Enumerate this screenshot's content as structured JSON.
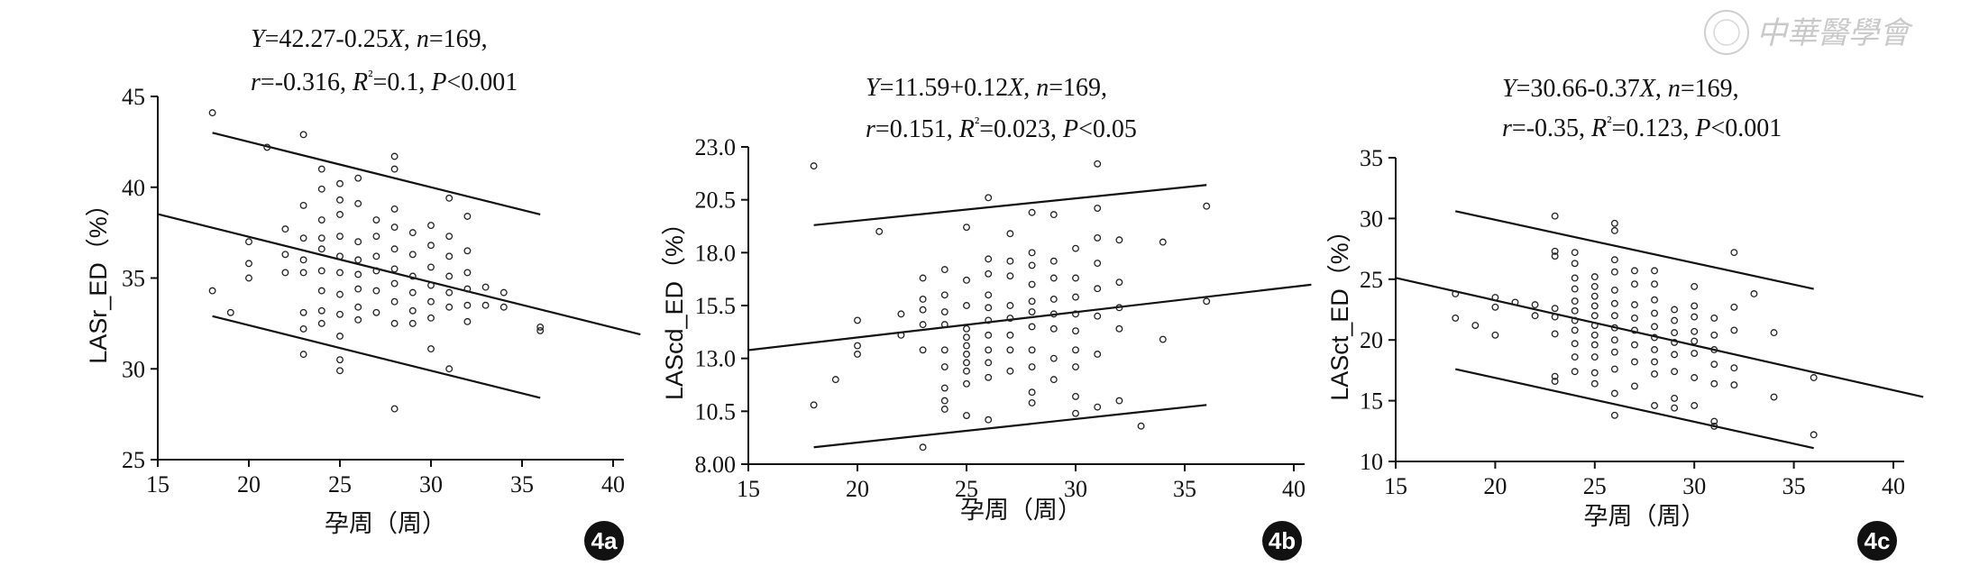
{
  "watermark": {
    "text": "中華醫學會"
  },
  "chart_data": [
    {
      "type": "scatter",
      "panel_label": "4a",
      "equation_line1": [
        "Y",
        "=42.27-0.25",
        "X",
        ", ",
        "n",
        "=169,"
      ],
      "equation_line2": [
        "r",
        "=-0.316, ",
        "R",
        "²",
        "=0.1, ",
        "P",
        "<0.001"
      ],
      "xlabel": "孕周（周）",
      "ylabel": "LASr_ED（%）",
      "xlim": [
        15,
        40
      ],
      "ylim": [
        25,
        45
      ],
      "xticks": [
        "15",
        "20",
        "25",
        "30",
        "35",
        "40"
      ],
      "yticks": [
        "25",
        "30",
        "35",
        "40",
        "45"
      ],
      "regression": {
        "intercept": 42.27,
        "slope": -0.25,
        "x_range": [
          15,
          41.5
        ]
      },
      "bands": [
        {
          "x_range": [
            18,
            36
          ],
          "y_start": 43.0,
          "y_end": 38.5
        },
        {
          "x_range": [
            18,
            36
          ],
          "y_start": 32.9,
          "y_end": 28.4
        }
      ],
      "points": [
        [
          18,
          44.1
        ],
        [
          18,
          34.3
        ],
        [
          19,
          33.1
        ],
        [
          20,
          37
        ],
        [
          20,
          35.8
        ],
        [
          20,
          35
        ],
        [
          21,
          42.2
        ],
        [
          22,
          37.7
        ],
        [
          22,
          36.3
        ],
        [
          22,
          35.3
        ],
        [
          23,
          42.9
        ],
        [
          23,
          39
        ],
        [
          23,
          37.2
        ],
        [
          23,
          36
        ],
        [
          23,
          35.3
        ],
        [
          23,
          33.1
        ],
        [
          23,
          32.2
        ],
        [
          23,
          30.8
        ],
        [
          24,
          41
        ],
        [
          24,
          39.9
        ],
        [
          24,
          38.2
        ],
        [
          24,
          37.2
        ],
        [
          24,
          36.6
        ],
        [
          24,
          35.4
        ],
        [
          24,
          34.3
        ],
        [
          24,
          33.2
        ],
        [
          24,
          32.5
        ],
        [
          25,
          40.2
        ],
        [
          25,
          39.3
        ],
        [
          25,
          38.5
        ],
        [
          25,
          37.3
        ],
        [
          25,
          36.2
        ],
        [
          25,
          35.3
        ],
        [
          25,
          34.1
        ],
        [
          25,
          33
        ],
        [
          25,
          31.8
        ],
        [
          25,
          30.5
        ],
        [
          25,
          29.9
        ],
        [
          26,
          40.5
        ],
        [
          26,
          39.1
        ],
        [
          26,
          37
        ],
        [
          26,
          36
        ],
        [
          26,
          35.2
        ],
        [
          26,
          34.4
        ],
        [
          26,
          33.4
        ],
        [
          26,
          32.7
        ],
        [
          27,
          38.2
        ],
        [
          27,
          37.3
        ],
        [
          27,
          36.2
        ],
        [
          27,
          35.4
        ],
        [
          27,
          34.3
        ],
        [
          27,
          33.1
        ],
        [
          28,
          41.7
        ],
        [
          28,
          41
        ],
        [
          28,
          38.8
        ],
        [
          28,
          37.8
        ],
        [
          28,
          36.6
        ],
        [
          28,
          35.5
        ],
        [
          28,
          34.7
        ],
        [
          28,
          33.7
        ],
        [
          28,
          32.5
        ],
        [
          28,
          27.8
        ],
        [
          29,
          37.5
        ],
        [
          29,
          36.3
        ],
        [
          29,
          35.1
        ],
        [
          29,
          34.2
        ],
        [
          29,
          33.2
        ],
        [
          29,
          32.5
        ],
        [
          30,
          37.9
        ],
        [
          30,
          36.8
        ],
        [
          30,
          35.6
        ],
        [
          30,
          34.6
        ],
        [
          30,
          33.7
        ],
        [
          30,
          32.8
        ],
        [
          30,
          31.1
        ],
        [
          31,
          39.4
        ],
        [
          31,
          37.3
        ],
        [
          31,
          36.2
        ],
        [
          31,
          35.1
        ],
        [
          31,
          34.2
        ],
        [
          31,
          33.4
        ],
        [
          31,
          30
        ],
        [
          32,
          38.4
        ],
        [
          32,
          36.5
        ],
        [
          32,
          35.3
        ],
        [
          32,
          34.4
        ],
        [
          32,
          33.5
        ],
        [
          32,
          32.6
        ],
        [
          33,
          34.5
        ],
        [
          33,
          33.5
        ],
        [
          34,
          34.2
        ],
        [
          34,
          33.4
        ],
        [
          36,
          32.3
        ],
        [
          36,
          32.1
        ]
      ]
    },
    {
      "type": "scatter",
      "panel_label": "4b",
      "equation_line1": [
        "Y",
        "=11.59+0.12",
        "X",
        ", ",
        "n",
        "=169,"
      ],
      "equation_line2": [
        "r",
        "=0.151, ",
        "R",
        "²",
        "=0.023, ",
        "P",
        "<0.05"
      ],
      "xlabel": "孕周（周）",
      "ylabel": "LAScd_ED（%）",
      "xlim": [
        15,
        40
      ],
      "ylim": [
        8,
        23
      ],
      "xticks": [
        "15",
        "20",
        "25",
        "30",
        "35",
        "40"
      ],
      "yticks": [
        "8.00",
        "10.5",
        "13.0",
        "15.5",
        "18.0",
        "20.5",
        "23.0"
      ],
      "regression": {
        "intercept": 11.59,
        "slope": 0.12,
        "x_range": [
          15,
          40.8
        ]
      },
      "bands": [
        {
          "x_range": [
            18,
            36
          ],
          "y_start": 19.3,
          "y_end": 21.2
        },
        {
          "x_range": [
            18,
            36
          ],
          "y_start": 8.8,
          "y_end": 10.8
        }
      ],
      "points": [
        [
          18,
          22.1
        ],
        [
          18,
          10.8
        ],
        [
          19,
          12
        ],
        [
          20,
          14.8
        ],
        [
          20,
          13.6
        ],
        [
          20,
          13.2
        ],
        [
          21,
          19
        ],
        [
          22,
          15.1
        ],
        [
          22,
          14.1
        ],
        [
          23,
          16.8
        ],
        [
          23,
          15.8
        ],
        [
          23,
          15.3
        ],
        [
          23,
          14.6
        ],
        [
          23,
          13.4
        ],
        [
          23,
          8.8
        ],
        [
          24,
          17.2
        ],
        [
          24,
          16
        ],
        [
          24,
          15.2
        ],
        [
          24,
          14.6
        ],
        [
          24,
          13.4
        ],
        [
          24,
          12.6
        ],
        [
          24,
          11.6
        ],
        [
          24,
          11
        ],
        [
          24,
          10.6
        ],
        [
          25,
          19.2
        ],
        [
          25,
          16.7
        ],
        [
          25,
          15.5
        ],
        [
          25,
          14.4
        ],
        [
          25,
          14
        ],
        [
          25,
          13.6
        ],
        [
          25,
          13.2
        ],
        [
          25,
          12.8
        ],
        [
          25,
          12.4
        ],
        [
          25,
          11.8
        ],
        [
          25,
          10.3
        ],
        [
          26,
          20.6
        ],
        [
          26,
          17.7
        ],
        [
          26,
          17
        ],
        [
          26,
          16
        ],
        [
          26,
          15.4
        ],
        [
          26,
          14.8
        ],
        [
          26,
          14.1
        ],
        [
          26,
          13.4
        ],
        [
          26,
          12.8
        ],
        [
          26,
          12.1
        ],
        [
          26,
          10.1
        ],
        [
          27,
          18.9
        ],
        [
          27,
          17.6
        ],
        [
          27,
          16.9
        ],
        [
          27,
          15.5
        ],
        [
          27,
          14.9
        ],
        [
          27,
          14.1
        ],
        [
          27,
          13.4
        ],
        [
          27,
          12.4
        ],
        [
          28,
          19.9
        ],
        [
          28,
          18
        ],
        [
          28,
          17.4
        ],
        [
          28,
          16.5
        ],
        [
          28,
          15.7
        ],
        [
          28,
          15.2
        ],
        [
          28,
          14.5
        ],
        [
          28,
          13.4
        ],
        [
          28,
          12.6
        ],
        [
          28,
          11.4
        ],
        [
          28,
          10.9
        ],
        [
          29,
          19.8
        ],
        [
          29,
          17.6
        ],
        [
          29,
          16.8
        ],
        [
          29,
          15.8
        ],
        [
          29,
          15.1
        ],
        [
          29,
          14.4
        ],
        [
          29,
          13
        ],
        [
          29,
          12
        ],
        [
          30,
          18.2
        ],
        [
          30,
          16.8
        ],
        [
          30,
          15.9
        ],
        [
          30,
          15.1
        ],
        [
          30,
          14.3
        ],
        [
          30,
          13.4
        ],
        [
          30,
          12.6
        ],
        [
          30,
          11.2
        ],
        [
          30,
          10.4
        ],
        [
          31,
          22.2
        ],
        [
          31,
          20.1
        ],
        [
          31,
          18.7
        ],
        [
          31,
          17.5
        ],
        [
          31,
          16.3
        ],
        [
          31,
          15
        ],
        [
          31,
          13.2
        ],
        [
          31,
          10.7
        ],
        [
          32,
          18.6
        ],
        [
          32,
          16.6
        ],
        [
          32,
          15.4
        ],
        [
          32,
          14.4
        ],
        [
          32,
          11
        ],
        [
          33,
          9.8
        ],
        [
          34,
          18.5
        ],
        [
          34,
          13.9
        ],
        [
          36,
          20.2
        ],
        [
          36,
          15.7
        ]
      ]
    },
    {
      "type": "scatter",
      "panel_label": "4c",
      "equation_line1": [
        "Y",
        "=30.66-0.37",
        "X",
        ", ",
        "n",
        "=169,"
      ],
      "equation_line2": [
        "r",
        "=-0.35, ",
        "R",
        "²",
        "=0.123, ",
        "P",
        "<0.001"
      ],
      "xlabel": "孕周（周）",
      "ylabel": "LASct_ED（%）",
      "xlim": [
        15,
        40
      ],
      "ylim": [
        10,
        35
      ],
      "xticks": [
        "15",
        "20",
        "25",
        "30",
        "35",
        "40"
      ],
      "yticks": [
        "10",
        "15",
        "20",
        "25",
        "30",
        "35"
      ],
      "regression": {
        "intercept": 30.66,
        "slope": -0.37,
        "x_range": [
          15,
          41.5
        ]
      },
      "bands": [
        {
          "x_range": [
            18,
            36
          ],
          "y_start": 30.6,
          "y_end": 24.2
        },
        {
          "x_range": [
            18,
            36
          ],
          "y_start": 17.6,
          "y_end": 11.1
        }
      ],
      "points": [
        [
          18,
          23.8
        ],
        [
          18,
          21.8
        ],
        [
          19,
          21.2
        ],
        [
          20,
          23.5
        ],
        [
          20,
          22.7
        ],
        [
          20,
          20.4
        ],
        [
          21,
          23.1
        ],
        [
          22,
          22.9
        ],
        [
          22,
          22
        ],
        [
          23,
          30.2
        ],
        [
          23,
          27.3
        ],
        [
          23,
          26.9
        ],
        [
          23,
          22.6
        ],
        [
          23,
          21.9
        ],
        [
          23,
          20.5
        ],
        [
          23,
          17
        ],
        [
          23,
          16.6
        ],
        [
          24,
          27.2
        ],
        [
          24,
          26.3
        ],
        [
          24,
          25.1
        ],
        [
          24,
          24.2
        ],
        [
          24,
          23.2
        ],
        [
          24,
          22.4
        ],
        [
          24,
          21.6
        ],
        [
          24,
          20.8
        ],
        [
          24,
          19.7
        ],
        [
          24,
          18.6
        ],
        [
          24,
          17.4
        ],
        [
          25,
          25.2
        ],
        [
          25,
          24.4
        ],
        [
          25,
          23.6
        ],
        [
          25,
          22.8
        ],
        [
          25,
          22
        ],
        [
          25,
          21.2
        ],
        [
          25,
          20.4
        ],
        [
          25,
          19.6
        ],
        [
          25,
          18.6
        ],
        [
          25,
          17.3
        ],
        [
          25,
          16.4
        ],
        [
          26,
          29.6
        ],
        [
          26,
          29
        ],
        [
          26,
          26.6
        ],
        [
          26,
          25.6
        ],
        [
          26,
          24.1
        ],
        [
          26,
          23
        ],
        [
          26,
          22
        ],
        [
          26,
          21
        ],
        [
          26,
          20
        ],
        [
          26,
          19
        ],
        [
          26,
          17.6
        ],
        [
          26,
          15.6
        ],
        [
          26,
          13.8
        ],
        [
          27,
          25.7
        ],
        [
          27,
          24.6
        ],
        [
          27,
          22.9
        ],
        [
          27,
          21.8
        ],
        [
          27,
          20.8
        ],
        [
          27,
          19.6
        ],
        [
          27,
          18.2
        ],
        [
          27,
          16.2
        ],
        [
          28,
          25.7
        ],
        [
          28,
          24.6
        ],
        [
          28,
          23.3
        ],
        [
          28,
          22.2
        ],
        [
          28,
          21.1
        ],
        [
          28,
          20.2
        ],
        [
          28,
          19.2
        ],
        [
          28,
          18.2
        ],
        [
          28,
          17.2
        ],
        [
          28,
          14.6
        ],
        [
          29,
          22.5
        ],
        [
          29,
          21.6
        ],
        [
          29,
          20.6
        ],
        [
          29,
          19.8
        ],
        [
          29,
          18.8
        ],
        [
          29,
          17.4
        ],
        [
          29,
          15.2
        ],
        [
          29,
          14.4
        ],
        [
          30,
          24.4
        ],
        [
          30,
          22.8
        ],
        [
          30,
          21.9
        ],
        [
          30,
          20.7
        ],
        [
          30,
          19.9
        ],
        [
          30,
          18.9
        ],
        [
          30,
          16.9
        ],
        [
          30,
          14.6
        ],
        [
          31,
          21.8
        ],
        [
          31,
          20.4
        ],
        [
          31,
          19.2
        ],
        [
          31,
          18
        ],
        [
          31,
          16.4
        ],
        [
          31,
          13.3
        ],
        [
          31,
          12.9
        ],
        [
          32,
          27.2
        ],
        [
          32,
          22.7
        ],
        [
          32,
          20.8
        ],
        [
          32,
          17.7
        ],
        [
          32,
          16.3
        ],
        [
          33,
          23.8
        ],
        [
          34,
          20.6
        ],
        [
          34,
          15.3
        ],
        [
          36,
          16.9
        ],
        [
          36,
          12.2
        ]
      ]
    }
  ]
}
